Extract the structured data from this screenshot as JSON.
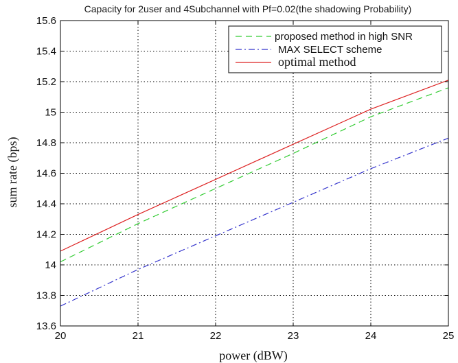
{
  "chart_data": {
    "type": "line",
    "title": "Capacity for 2user and 4Subchannel with Pf=0.02(the shadowing Probability)",
    "xlabel": "power (dBW)",
    "ylabel": "sum rate (bps)",
    "xlim": [
      20,
      25
    ],
    "ylim": [
      13.6,
      15.6
    ],
    "xticks": [
      "20",
      "21",
      "22",
      "23",
      "24",
      "25"
    ],
    "yticks": [
      "13.6",
      "13.8",
      "14",
      "14.2",
      "14.4",
      "14.6",
      "14.8",
      "15",
      "15.2",
      "15.4",
      "15.6"
    ],
    "grid": true,
    "legend_position": "top-right",
    "x": [
      20,
      21,
      22,
      23,
      24,
      25
    ],
    "series": [
      {
        "name": "proposed method  in high SNR",
        "color": "#33cc33",
        "dash": "dashed",
        "values": [
          14.02,
          14.27,
          14.5,
          14.73,
          14.97,
          15.16
        ]
      },
      {
        "name": "MAX SELECT scheme",
        "color": "#3333cc",
        "dash": "dashdot",
        "values": [
          13.73,
          13.97,
          14.19,
          14.41,
          14.63,
          14.83
        ]
      },
      {
        "name": "optimal method",
        "color": "#dd2222",
        "dash": "solid",
        "values": [
          14.09,
          14.33,
          14.56,
          14.79,
          15.02,
          15.21
        ]
      }
    ]
  }
}
